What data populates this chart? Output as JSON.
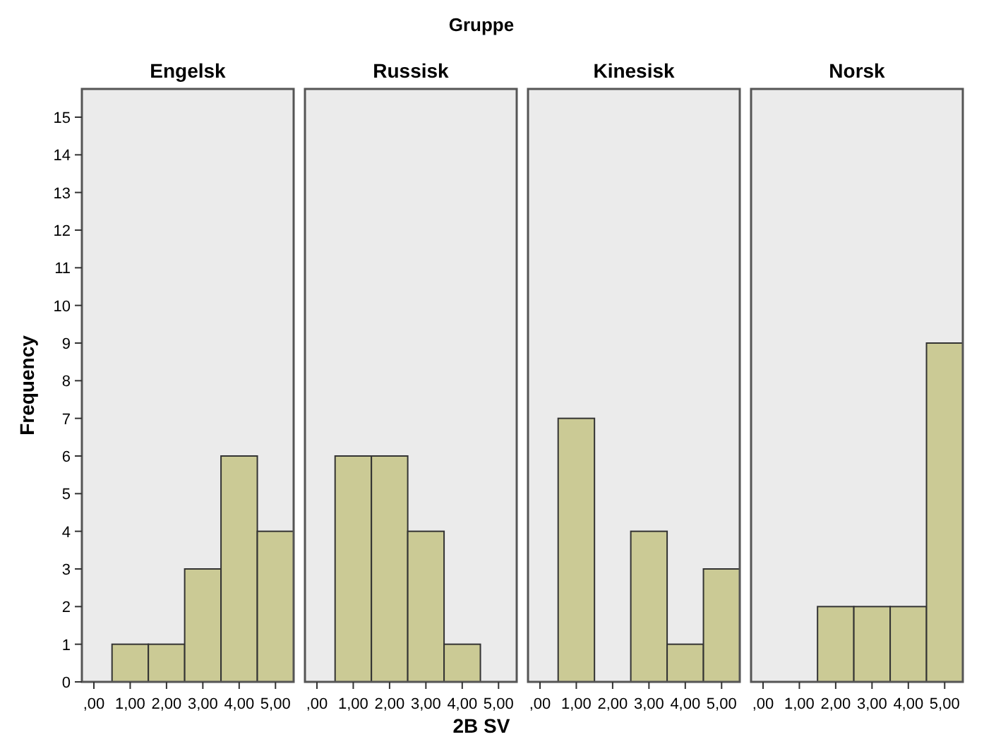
{
  "chart_data": [
    {
      "type": "histogram",
      "title": "Engelsk",
      "ylabel": "Frequency",
      "bins": [
        0.5,
        1.5,
        2.5,
        3.5,
        4.5,
        5.5
      ],
      "values": [
        1,
        1,
        3,
        6,
        4
      ],
      "color": "#cbca95",
      "xlim": [
        -0.33,
        5.5
      ],
      "ylim": [
        0,
        15.75
      ],
      "xticks": [
        {
          "value": 0,
          "label": ",00"
        },
        {
          "value": 1,
          "label": "1,00"
        },
        {
          "value": 2,
          "label": "2,00"
        },
        {
          "value": 3,
          "label": "3,00"
        },
        {
          "value": 4,
          "label": "4,00"
        },
        {
          "value": 5,
          "label": "5,00"
        }
      ],
      "yticks": [
        0,
        1,
        2,
        3,
        4,
        5,
        6,
        7,
        8,
        9,
        10,
        11,
        12,
        13,
        14,
        15
      ],
      "grid": false
    },
    {
      "type": "histogram",
      "title": "Russisk",
      "xlabel": "2B SV",
      "annotations": [
        "Gruppe"
      ],
      "bins": [
        0.5,
        1.5,
        2.5,
        3.5,
        4.5
      ],
      "values": [
        6,
        6,
        4,
        1
      ],
      "color": "#cbca95",
      "xlim": [
        -0.33,
        5.5
      ],
      "ylim": [
        0,
        15.75
      ],
      "xticks": [
        {
          "value": 0,
          "label": ",00"
        },
        {
          "value": 1,
          "label": "1,00"
        },
        {
          "value": 2,
          "label": "2,00"
        },
        {
          "value": 3,
          "label": "3,00"
        },
        {
          "value": 4,
          "label": "4,00"
        },
        {
          "value": 5,
          "label": "5,00"
        }
      ],
      "yticks": [
        0,
        1,
        2,
        3,
        4,
        5,
        6,
        7,
        8,
        9,
        10,
        11,
        12,
        13,
        14,
        15
      ],
      "tick_labels": "x",
      "grid": false
    },
    {
      "type": "histogram",
      "title": "Kinesisk",
      "bins": [
        0.5,
        1.5,
        2.5,
        3.5,
        4.5,
        5.5
      ],
      "values": [
        7,
        0,
        4,
        1,
        3
      ],
      "color": "#cbca95",
      "xlim": [
        -0.33,
        5.5
      ],
      "ylim": [
        0,
        15.75
      ],
      "xticks": [
        {
          "value": 0,
          "label": ",00"
        },
        {
          "value": 1,
          "label": "1,00"
        },
        {
          "value": 2,
          "label": "2,00"
        },
        {
          "value": 3,
          "label": "3,00"
        },
        {
          "value": 4,
          "label": "4,00"
        },
        {
          "value": 5,
          "label": "5,00"
        }
      ],
      "yticks": [
        0,
        1,
        2,
        3,
        4,
        5,
        6,
        7,
        8,
        9,
        10,
        11,
        12,
        13,
        14,
        15
      ],
      "tick_labels": "x",
      "grid": false
    },
    {
      "type": "histogram",
      "title": "Norsk",
      "bins": [
        1.5,
        2.5,
        3.5,
        4.5,
        5.5
      ],
      "values": [
        2,
        2,
        2,
        9
      ],
      "color": "#cbca95",
      "xlim": [
        -0.33,
        5.5
      ],
      "ylim": [
        0,
        15.75
      ],
      "xticks": [
        {
          "value": 0,
          "label": ",00"
        },
        {
          "value": 1,
          "label": "1,00"
        },
        {
          "value": 2,
          "label": "2,00"
        },
        {
          "value": 3,
          "label": "3,00"
        },
        {
          "value": 4,
          "label": "4,00"
        },
        {
          "value": 5,
          "label": "5,00"
        }
      ],
      "yticks": [
        0,
        1,
        2,
        3,
        4,
        5,
        6,
        7,
        8,
        9,
        10,
        11,
        12,
        13,
        14,
        15
      ],
      "tick_labels": "x",
      "grid": false
    }
  ]
}
